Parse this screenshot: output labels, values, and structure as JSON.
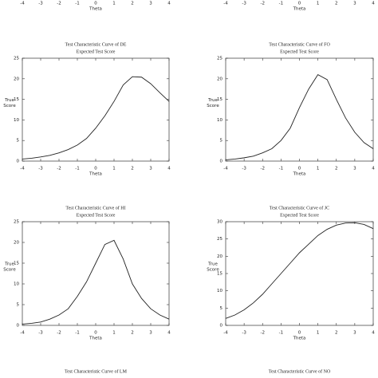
{
  "chart_data": [
    {
      "type": "line",
      "xlabel": "Theta",
      "xlim": [
        -4,
        4
      ],
      "xticks": [
        -4,
        -3,
        -2,
        -1,
        0,
        1,
        2,
        3,
        4
      ]
    },
    {
      "type": "line",
      "xlabel": "Theta",
      "xlim": [
        -4,
        4
      ],
      "xticks": [
        -4,
        -3,
        -2,
        -1,
        0,
        1,
        2,
        3,
        4
      ]
    },
    {
      "type": "line",
      "title": "Test Characteristic Curve of DE",
      "subtitle": "Expected Test Score",
      "ylabel": [
        "True",
        "Score"
      ],
      "xlabel": "Theta",
      "xlim": [
        -4,
        4
      ],
      "xticks": [
        -4,
        -3,
        -2,
        -1,
        0,
        1,
        2,
        3,
        4
      ],
      "ylim": [
        0,
        25
      ],
      "yticks": [
        0,
        5,
        10,
        15,
        20,
        25
      ],
      "x": [
        -4,
        -3.5,
        -3,
        -2.5,
        -2,
        -1.5,
        -1,
        -0.5,
        0,
        0.5,
        1,
        1.5,
        2,
        2.5,
        3,
        3.5,
        4
      ],
      "series": [
        {
          "color": "#222222",
          "values": [
            0.5,
            0.7,
            1.0,
            1.4,
            2.0,
            2.8,
            3.9,
            5.5,
            8.0,
            11,
            14.5,
            18.5,
            20.5,
            20.4,
            18.8,
            16.6,
            14.5
          ]
        }
      ]
    },
    {
      "type": "line",
      "title": "Test Characteristic Curve of FO",
      "subtitle": "Expected Test Score",
      "ylabel": [
        "True",
        "Score"
      ],
      "xlabel": "Theta",
      "xlim": [
        -4,
        4
      ],
      "xticks": [
        -4,
        -3,
        -2,
        -1,
        0,
        1,
        2,
        3,
        4
      ],
      "ylim": [
        0,
        25
      ],
      "yticks": [
        0,
        5,
        10,
        15,
        20,
        25
      ],
      "x": [
        -4,
        -3.5,
        -3,
        -2.5,
        -2,
        -1.5,
        -1,
        -0.5,
        0,
        0.5,
        1,
        1.5,
        2,
        2.5,
        3,
        3.5,
        4
      ],
      "series": [
        {
          "color": "#222222",
          "values": [
            0.3,
            0.5,
            0.8,
            1.2,
            2,
            3,
            5,
            8,
            13,
            17.5,
            21,
            19.8,
            15,
            10.5,
            7,
            4.5,
            3
          ]
        }
      ]
    },
    {
      "type": "line",
      "title": "Test Characteristic Curve of HI",
      "subtitle": "Expected Test Score",
      "ylabel": [
        "True",
        "Score"
      ],
      "xlabel": "Theta",
      "xlim": [
        -4,
        4
      ],
      "xticks": [
        -4,
        -3,
        -2,
        -1,
        0,
        1,
        2,
        3,
        4
      ],
      "ylim": [
        0,
        25
      ],
      "yticks": [
        0,
        5,
        10,
        15,
        20,
        25
      ],
      "x": [
        -4,
        -3.5,
        -3,
        -2.5,
        -2,
        -1.5,
        -1,
        -0.5,
        0,
        0.5,
        1,
        1.5,
        2,
        2.5,
        3,
        3.5,
        4
      ],
      "series": [
        {
          "color": "#222222",
          "values": [
            0.3,
            0.5,
            0.8,
            1.5,
            2.5,
            4,
            7,
            10.5,
            15,
            19.5,
            20.5,
            16,
            10,
            6.5,
            4,
            2.5,
            1.5
          ]
        }
      ]
    },
    {
      "type": "line",
      "title": "Test Characteristic Curve of JC",
      "subtitle": "Expected Test Score",
      "ylabel": [
        "True",
        "Score"
      ],
      "xlabel": "Theta",
      "xlim": [
        -4,
        4
      ],
      "xticks": [
        -4,
        -3,
        -2,
        -1,
        0,
        1,
        2,
        3,
        4
      ],
      "ylim": [
        0,
        30
      ],
      "yticks": [
        0,
        5,
        10,
        15,
        20,
        25,
        30
      ],
      "x": [
        -4,
        -3.5,
        -3,
        -2.5,
        -2,
        -1.5,
        -1,
        -0.5,
        0,
        0.5,
        1,
        1.5,
        2,
        2.5,
        3,
        3.5,
        4
      ],
      "series": [
        {
          "color": "#222222",
          "values": [
            2,
            3,
            4.5,
            6.5,
            9,
            12,
            15,
            18,
            21,
            23.5,
            26,
            27.8,
            29,
            29.6,
            29.7,
            29.2,
            28
          ]
        }
      ]
    },
    {
      "type": "line",
      "title": "Test Characteristic Curve of LM"
    },
    {
      "type": "line",
      "title": "Test Characteristic Curve of NO"
    }
  ]
}
